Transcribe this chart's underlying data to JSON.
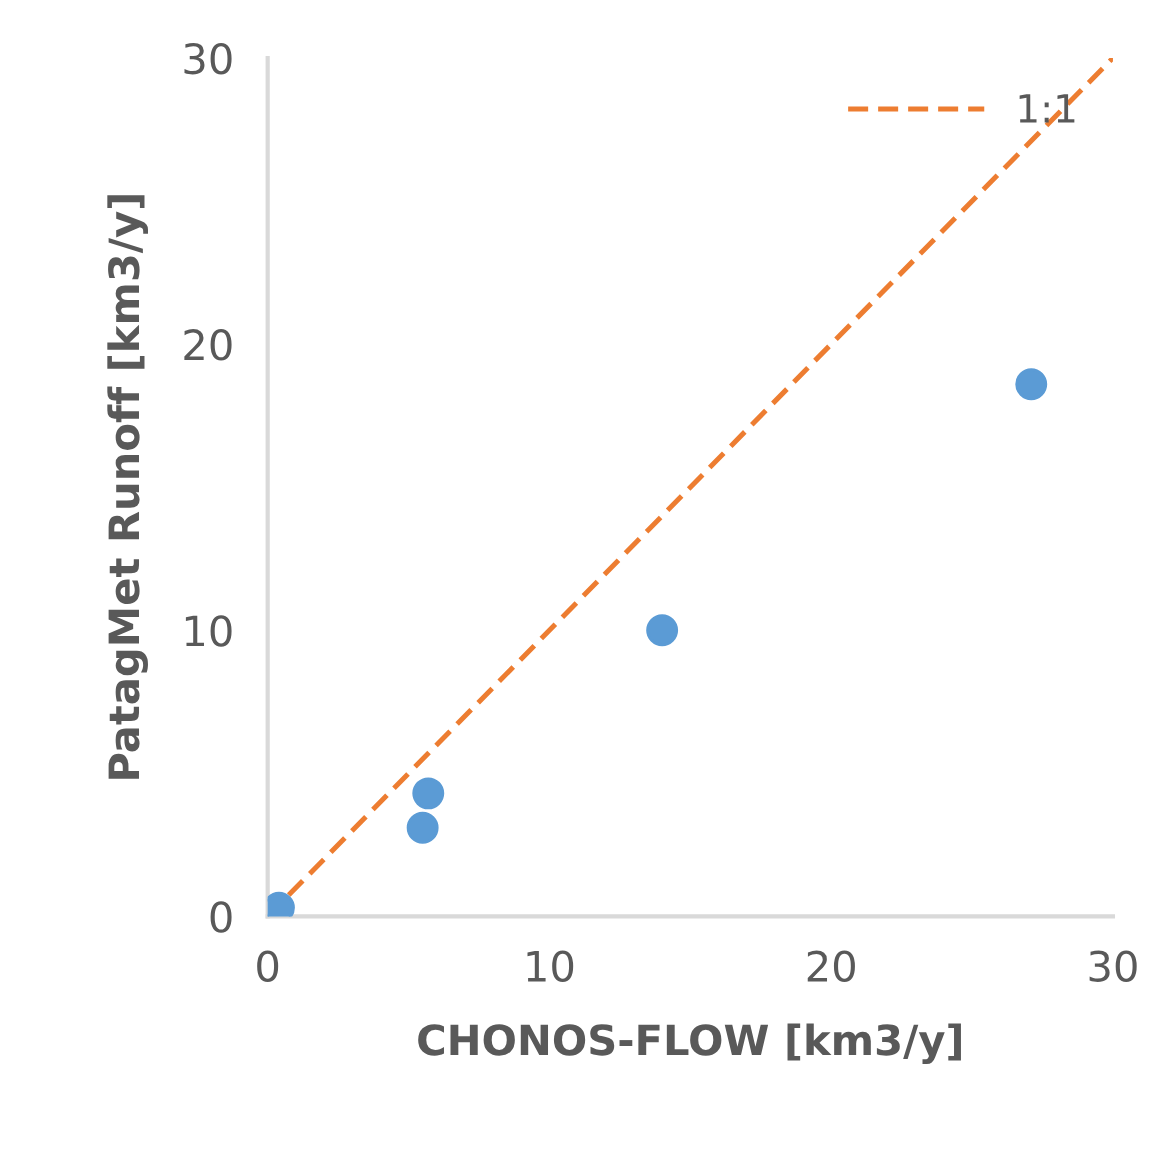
{
  "chart_data": {
    "type": "scatter",
    "xlabel": "CHONOS-FLOW [km3/y]",
    "ylabel": "PatagMet Runoff [km3/y]",
    "xlim": [
      0,
      30
    ],
    "ylim": [
      0,
      30
    ],
    "xticks": [
      0,
      10,
      20,
      30
    ],
    "yticks": [
      0,
      10,
      20,
      30
    ],
    "grid": false,
    "legend": "top right",
    "marker": "circle",
    "series": [
      {
        "color": "#5b9bd5",
        "x": [
          27.1,
          14.0,
          5.7,
          5.5,
          0.4
        ],
        "values": [
          18.6,
          10.0,
          4.3,
          3.1,
          0.3
        ]
      },
      {
        "type": "line",
        "name": "1:1",
        "color": "#ed7d31",
        "line_style": "dashed",
        "marker": "none",
        "x": [
          0,
          30
        ],
        "values": [
          0,
          30
        ]
      }
    ]
  }
}
